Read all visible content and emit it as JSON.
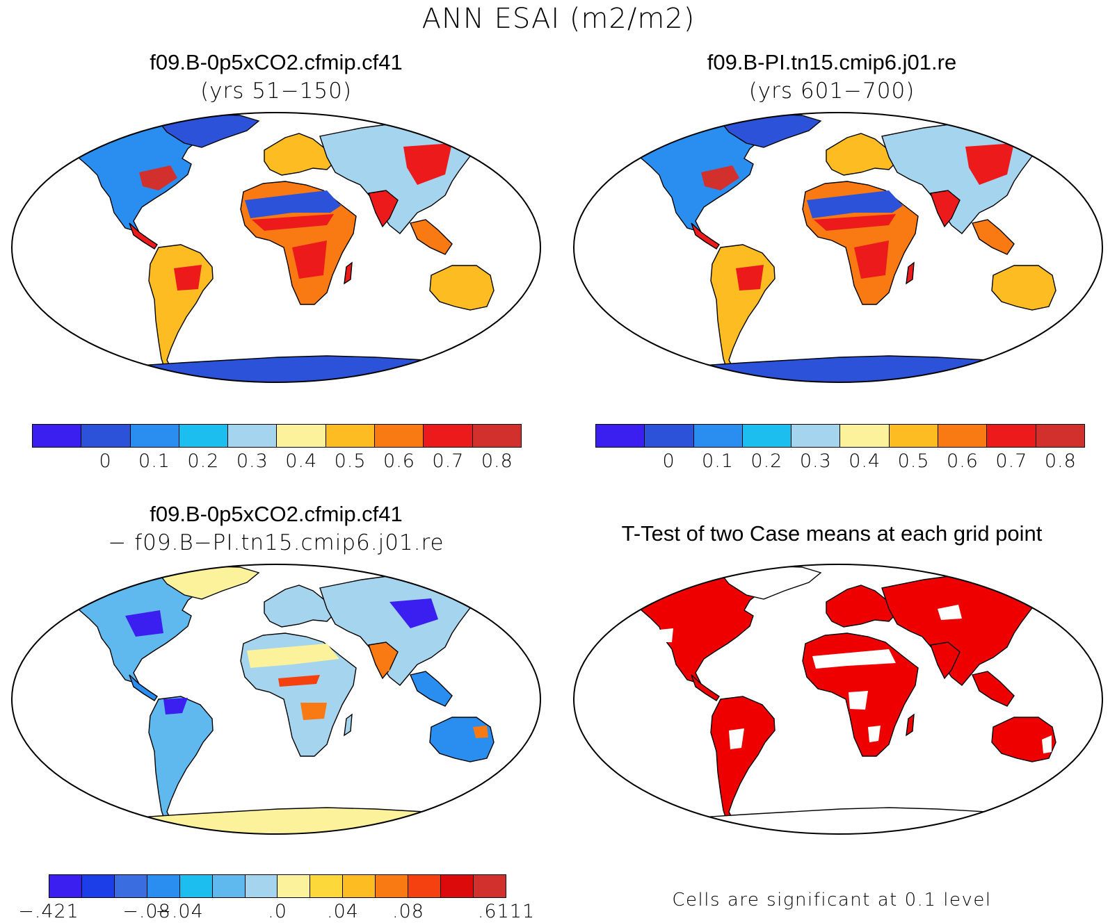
{
  "figure": {
    "title": "ANN ESAI (m2/m2)"
  },
  "panels": [
    {
      "title": "f09.B-0p5xCO2.cfmip.cf41",
      "subtitle": "(yrs 51−150)",
      "map_style": "field",
      "colorbar": {
        "colors": [
          "#3b1ff0",
          "#2b52d9",
          "#2a8ef0",
          "#1cbef0",
          "#a5d4ee",
          "#fdf29c",
          "#fdbd22",
          "#f97a12",
          "#ec1a1a",
          "#d2302d"
        ],
        "tick_labels": [
          "0",
          "0.1",
          "0.2",
          "0.3",
          "0.4",
          "0.5",
          "0.6",
          "0.7",
          "0.8"
        ]
      }
    },
    {
      "title": "f09.B-PI.tn15.cmip6.j01.re",
      "subtitle": "(yrs 601−700)",
      "map_style": "field",
      "colorbar": {
        "colors": [
          "#3b1ff0",
          "#2b52d9",
          "#2a8ef0",
          "#1cbef0",
          "#a5d4ee",
          "#fdf29c",
          "#fdbd22",
          "#f97a12",
          "#ec1a1a",
          "#d2302d"
        ],
        "tick_labels": [
          "0",
          "0.1",
          "0.2",
          "0.3",
          "0.4",
          "0.5",
          "0.6",
          "0.7",
          "0.8"
        ]
      }
    },
    {
      "title": "f09.B-0p5xCO2.cfmip.cf41",
      "subtitle": "− f09.B−PI.tn15.cmip6.j01.re",
      "map_style": "difference",
      "colorbar": {
        "colors": [
          "#3b1ff0",
          "#1c3ee8",
          "#3a6ee0",
          "#2a8ef0",
          "#1cbef0",
          "#5fb8ee",
          "#a5d4ee",
          "#fdf29c",
          "#fcd83a",
          "#fdbd22",
          "#f97a12",
          "#f5410f",
          "#dc0a0a",
          "#d2302d"
        ],
        "tick_labels": [
          "−.421",
          "−.08",
          "−.04",
          ".0",
          ".04",
          ".08",
          ".6111"
        ]
      }
    },
    {
      "title": "T-Test of two Case means at each grid point",
      "map_style": "significance",
      "note": "Cells are significant at 0.1 level"
    }
  ],
  "colors": {
    "significant": "#ee0000",
    "outline": "#000000",
    "background": "#ffffff"
  }
}
